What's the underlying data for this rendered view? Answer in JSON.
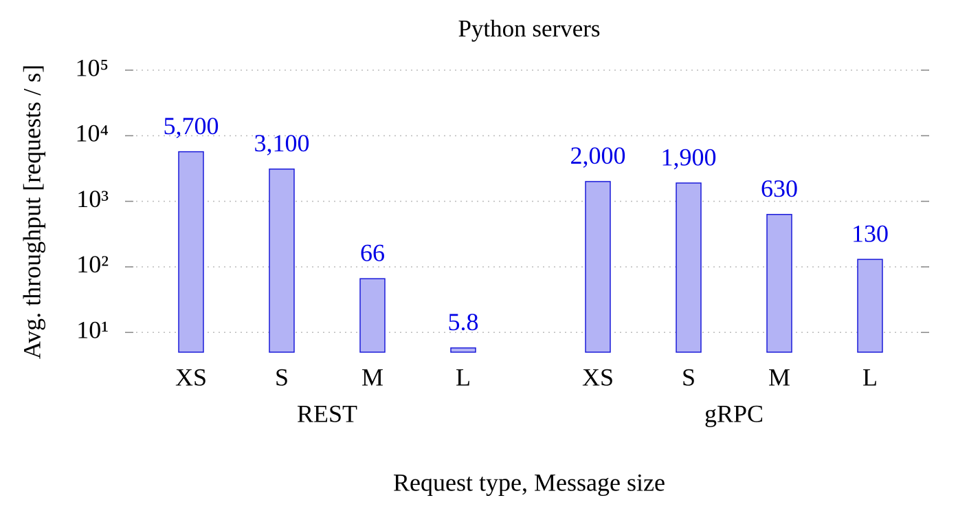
{
  "chart_data": {
    "type": "bar",
    "title": "Python servers",
    "xlabel": "Request type, Message size",
    "ylabel": "Avg. throughput [requests / s]",
    "log_scale": true,
    "grid": true,
    "color": "#b3b3f5",
    "edge_color": "#1a1ad9",
    "label_color": "#0000e6",
    "groups": [
      {
        "name": "REST",
        "categories": [
          "XS",
          "S",
          "M",
          "L"
        ],
        "values": [
          5700,
          3100,
          66,
          5.8
        ],
        "value_labels": [
          "5,700",
          "3,100",
          "66",
          "5.8"
        ]
      },
      {
        "name": "gRPC",
        "categories": [
          "XS",
          "S",
          "M",
          "L"
        ],
        "values": [
          2000,
          1900,
          630,
          130
        ],
        "value_labels": [
          "2,000",
          "1,900",
          "630",
          "130"
        ]
      }
    ],
    "ylim": [
      5,
      100000
    ],
    "yticks": [
      {
        "value": 10,
        "label": "10¹"
      },
      {
        "value": 100,
        "label": "10²"
      },
      {
        "value": 1000,
        "label": "10³"
      },
      {
        "value": 10000,
        "label": "10⁴"
      },
      {
        "value": 100000,
        "label": "10⁵"
      }
    ]
  }
}
